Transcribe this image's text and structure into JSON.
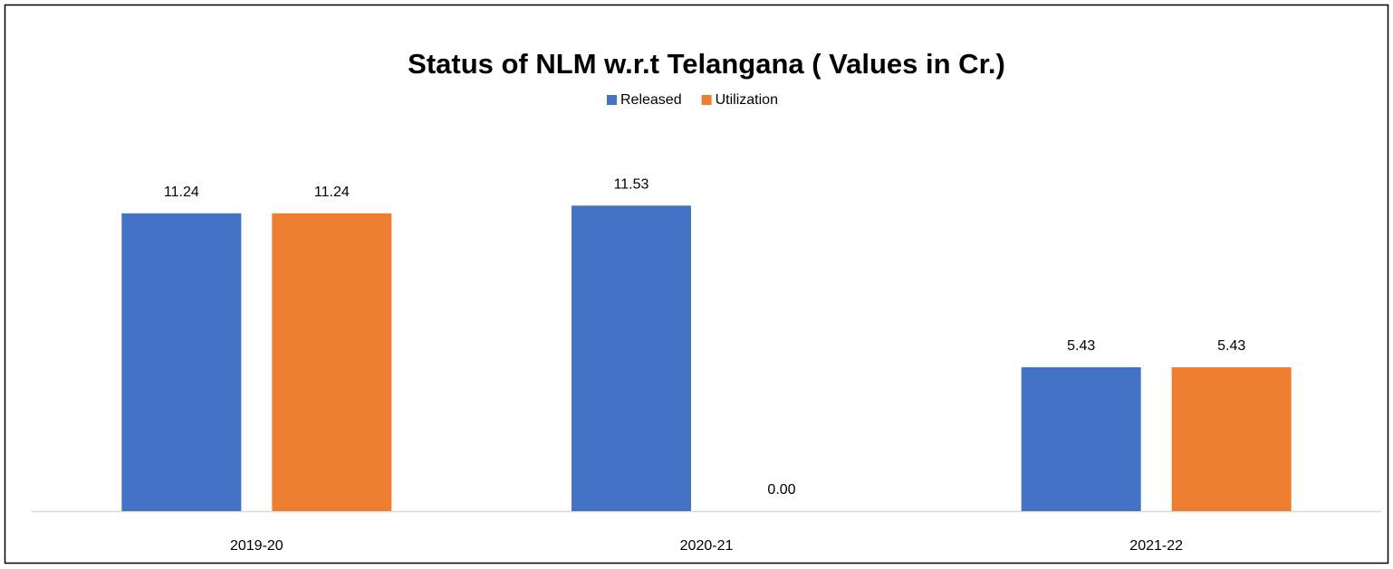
{
  "chart_data": {
    "type": "bar",
    "title": "Status of NLM w.r.t Telangana ( Values in Cr.)",
    "categories": [
      "2019-20",
      "2020-21",
      "2021-22"
    ],
    "series": [
      {
        "name": "Released",
        "color": "#4472c4",
        "values": [
          11.24,
          11.53,
          5.43
        ],
        "value_labels": [
          "11.24",
          "11.53",
          "5.43"
        ]
      },
      {
        "name": "Utilization",
        "color": "#ed7d31",
        "values": [
          11.24,
          0,
          5.43
        ],
        "value_labels": [
          "11.24",
          "0.00",
          "5.43"
        ]
      }
    ],
    "ylim": [
      0,
      14
    ],
    "legend": "top"
  }
}
